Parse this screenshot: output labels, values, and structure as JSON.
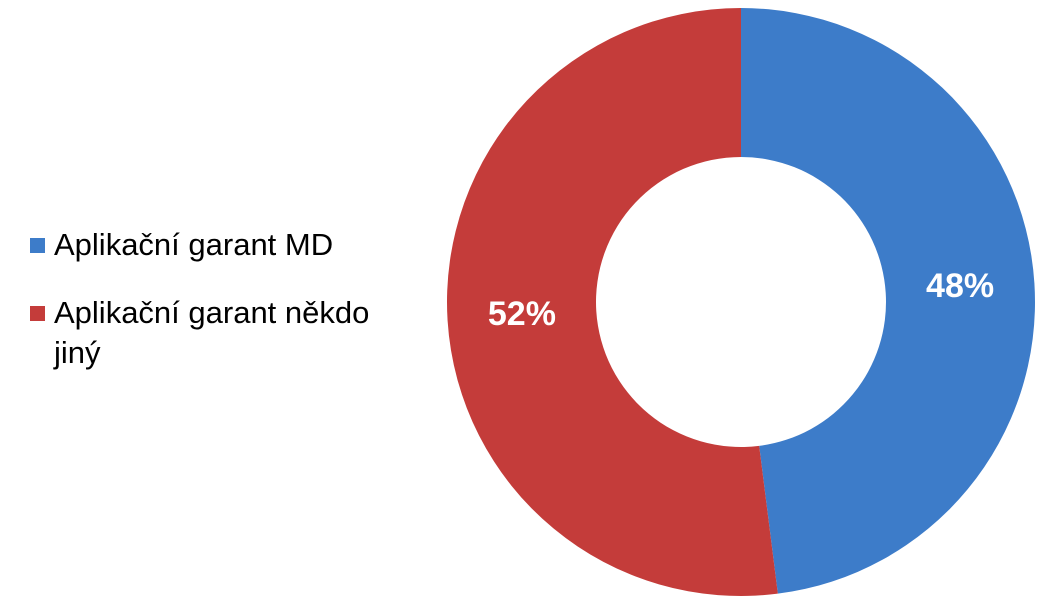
{
  "chart_data": {
    "type": "donut",
    "categories": [
      "Aplikační garant MD",
      "Aplikační garant někdo jiný"
    ],
    "values": [
      48,
      52
    ],
    "value_labels": [
      "48%",
      "52%"
    ],
    "colors": [
      "#3d7cc9",
      "#c43c3a"
    ],
    "legend": "left"
  }
}
